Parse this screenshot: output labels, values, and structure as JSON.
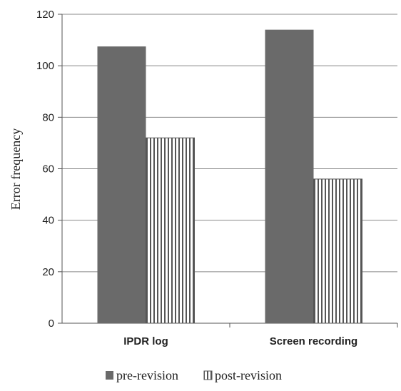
{
  "chart_data": {
    "type": "bar",
    "categories": [
      "IPDR log",
      "Screen recording"
    ],
    "series": [
      {
        "name": "pre-revision",
        "values": [
          107.5,
          114
        ],
        "color": "#6a6a6a",
        "fill": "solid"
      },
      {
        "name": "post-revision",
        "values": [
          72,
          56
        ],
        "color": "#ffffff",
        "fill": "vertical-stripes"
      }
    ],
    "xlabel": "",
    "ylabel": "Error frequency",
    "ylim": [
      0,
      120
    ],
    "yticks": [
      0,
      20,
      40,
      60,
      80,
      100,
      120
    ],
    "grid": true,
    "legend": "bottom"
  }
}
